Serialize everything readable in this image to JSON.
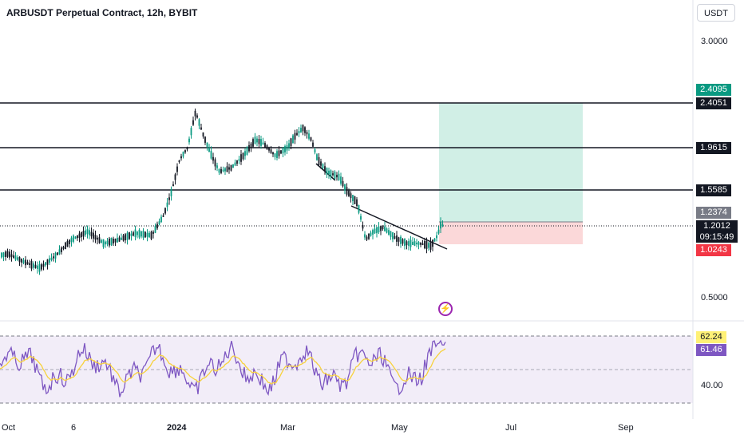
{
  "header": {
    "title": "ARBUSDT Perpetual Contract, 12h, BYBIT",
    "currency_button": "USDT"
  },
  "price_axis": {
    "scale": "log",
    "labels": [
      "3.0000",
      "0.5000"
    ],
    "price_line_labels": [
      "2.4051",
      "1.9615",
      "1.5585"
    ],
    "target_label": {
      "value": "2.4095",
      "color": "#089981"
    },
    "entry_label": {
      "value": "1.2374",
      "color": "#787b86"
    },
    "last_price": {
      "value": "1.2012",
      "countdown": "09:15:49",
      "color": "#131722"
    },
    "stop_label": {
      "value": "1.0243",
      "color": "#f23645"
    }
  },
  "rsi_axis": {
    "labels": [
      "40.00"
    ],
    "ma_value": {
      "value": "62.24",
      "color": "#fff176"
    },
    "rsi_value": {
      "value": "61.46",
      "color": "#7e57c2"
    }
  },
  "time_axis": {
    "labels": [
      "Oct",
      "6",
      "2024",
      "Mar",
      "May",
      "Jul",
      "Sep"
    ]
  },
  "icons": {
    "alert": "lightning-icon"
  },
  "colors": {
    "up": "#089981",
    "down": "#131722",
    "target_zone": "#d1efe6",
    "stop_zone": "#fbd8d9",
    "rsi_line": "#7e57c2",
    "rsi_ma": "#f7d23d"
  },
  "chart_data": {
    "type": "candlestick",
    "symbol": "ARBUSDT",
    "interval": "12h",
    "ylim": [
      0.45,
      3.3
    ],
    "horizontal_levels": [
      2.4051,
      1.9615,
      1.5585
    ],
    "long_position": {
      "target": 2.4095,
      "entry": 1.2374,
      "stop": 1.0243
    },
    "last_price": 1.2012,
    "close_path": [
      {
        "x": "Oct",
        "y": 0.83
      },
      {
        "x": "6",
        "y": 1.05
      },
      {
        "x": "2024",
        "y": 2.3
      },
      {
        "x": "Mar",
        "y": 2.1
      },
      {
        "x": "May",
        "y": 0.97
      },
      {
        "x": "Jul",
        "y": null
      }
    ],
    "rsi": {
      "last": 61.46,
      "ma_last": 62.24,
      "bands": [
        70,
        50,
        30
      ]
    }
  }
}
